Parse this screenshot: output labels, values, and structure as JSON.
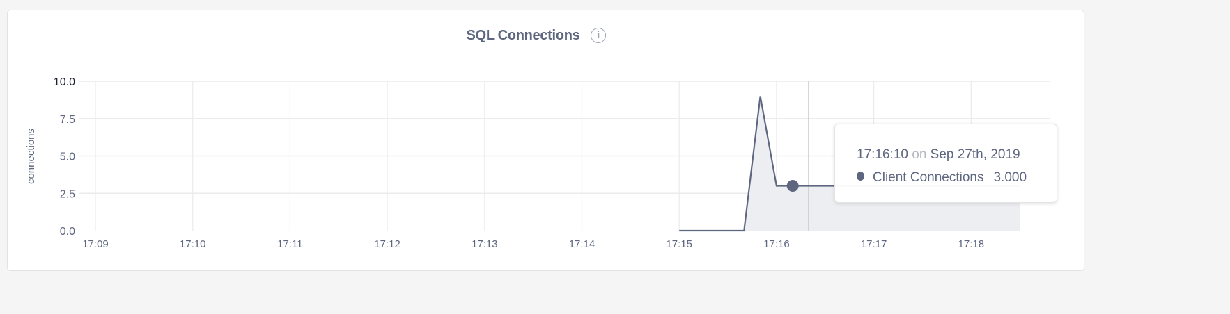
{
  "chart_data": {
    "type": "area",
    "title": "SQL Connections",
    "ylabel": "connections",
    "xlabel": "",
    "ylim": [
      0,
      10
    ],
    "yticks": [
      "0.0",
      "2.5",
      "5.0",
      "7.5",
      "10.0"
    ],
    "xticks": [
      "17:09",
      "17:10",
      "17:11",
      "17:12",
      "17:13",
      "17:14",
      "17:15",
      "17:16",
      "17:17",
      "17:18"
    ],
    "grid": true,
    "series": [
      {
        "name": "Client Connections",
        "color": "#5e677f",
        "fill": "#edeef2",
        "x": [
          "17:15:00",
          "17:15:10",
          "17:15:20",
          "17:15:30",
          "17:15:40",
          "17:15:50",
          "17:16:00",
          "17:16:10",
          "17:16:20",
          "17:16:30",
          "17:16:40",
          "17:16:50",
          "17:17:00",
          "17:17:10",
          "17:17:20",
          "17:17:30",
          "17:17:40",
          "17:17:50",
          "17:18:00",
          "17:18:10",
          "17:18:20",
          "17:18:30"
        ],
        "values": [
          0,
          0,
          0,
          0,
          0,
          9,
          3,
          3,
          3,
          3,
          3,
          3,
          3,
          3,
          3,
          3,
          3,
          3,
          3,
          3,
          3,
          3
        ]
      }
    ],
    "hover": {
      "x": "17:16:10",
      "value": 3
    }
  },
  "header": {
    "title": "SQL Connections",
    "info_icon": "info-icon",
    "info_glyph": "i"
  },
  "tooltip": {
    "time": "17:16:10",
    "on": "on",
    "date": "Sep 27th, 2019",
    "series_label": "Client Connections",
    "value": "3.000"
  }
}
